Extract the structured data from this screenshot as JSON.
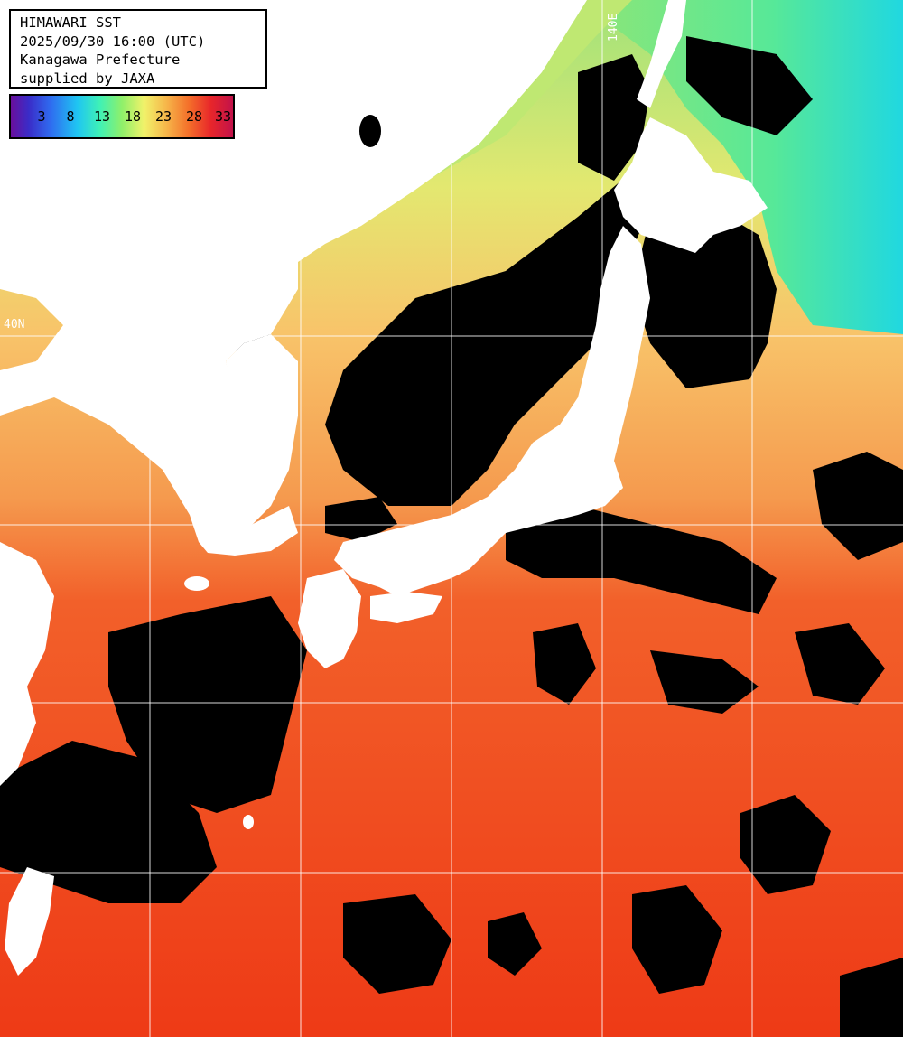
{
  "info": {
    "line1": "HIMAWARI SST",
    "line2": "2025/09/30 16:00 (UTC)",
    "line3": "Kanagawa Prefecture",
    "line4": "supplied by JAXA"
  },
  "legend": {
    "ticks": [
      "3",
      "8",
      "13",
      "18",
      "23",
      "28",
      "33"
    ],
    "colors": [
      "#6a0f9c",
      "#2f6cf0",
      "#1fc6f2",
      "#3ff1b6",
      "#8ff06a",
      "#f1f26a",
      "#f6b64a",
      "#f4702a",
      "#e8262a",
      "#c2124a"
    ]
  },
  "grid_labels": {
    "lon": "140E",
    "lat": "40N"
  },
  "colors": {
    "land": "#ffffff",
    "cloud_mask": "#000000",
    "sea_warm": "#f0401c",
    "sea_mild": "#f5a05a",
    "sea_cool": "#9ff06a",
    "sea_cold": "#3df0c8",
    "grid": "#ffffff"
  }
}
